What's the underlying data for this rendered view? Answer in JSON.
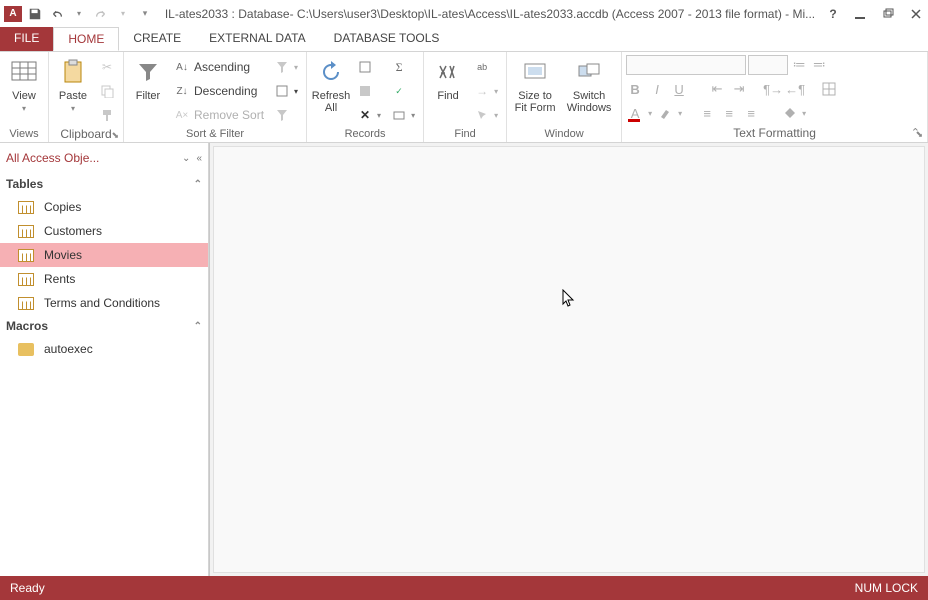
{
  "title": "IL-ates2033 : Database- C:\\Users\\user3\\Desktop\\IL-ates\\Access\\IL-ates2033.accdb (Access 2007 - 2013 file format) - Mi...",
  "tabs": {
    "file": "FILE",
    "home": "HOME",
    "create": "CREATE",
    "external": "EXTERNAL DATA",
    "dbtools": "DATABASE TOOLS"
  },
  "ribbon": {
    "views": {
      "view": "View",
      "group": "Views"
    },
    "clipboard": {
      "paste": "Paste",
      "group": "Clipboard"
    },
    "sortfilter": {
      "filter": "Filter",
      "asc": "Ascending",
      "desc": "Descending",
      "remove": "Remove Sort",
      "group": "Sort & Filter"
    },
    "records": {
      "refresh": "Refresh\nAll",
      "group": "Records"
    },
    "find": {
      "find": "Find",
      "group": "Find"
    },
    "window": {
      "size": "Size to\nFit Form",
      "switch": "Switch\nWindows",
      "group": "Window"
    },
    "textfmt": {
      "group": "Text Formatting"
    }
  },
  "nav": {
    "header": "All Access Obje...",
    "sections": {
      "tables": "Tables",
      "macros": "Macros"
    },
    "tables": [
      "Copies",
      "Customers",
      "Movies",
      "Rents",
      "Terms and Conditions"
    ],
    "selectedTable": "Movies",
    "macros": [
      "autoexec"
    ]
  },
  "status": {
    "ready": "Ready",
    "numlock": "NUM LOCK"
  }
}
